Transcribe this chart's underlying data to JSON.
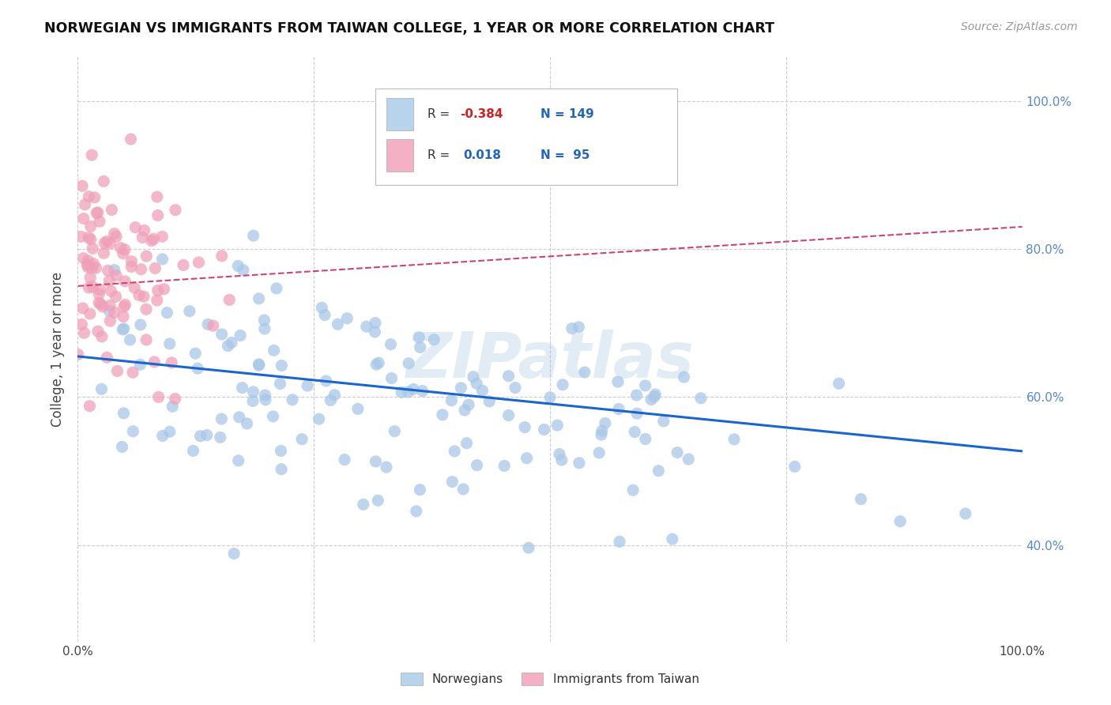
{
  "title": "NORWEGIAN VS IMMIGRANTS FROM TAIWAN COLLEGE, 1 YEAR OR MORE CORRELATION CHART",
  "source": "Source: ZipAtlas.com",
  "ylabel": "College, 1 year or more",
  "xlim": [
    0.0,
    1.0
  ],
  "ylim": [
    0.27,
    1.06
  ],
  "ytick_positions": [
    0.4,
    0.6,
    0.8,
    1.0
  ],
  "ytick_labels": [
    "40.0%",
    "60.0%",
    "80.0%",
    "100.0%"
  ],
  "xtick_positions": [
    0.0,
    0.25,
    0.5,
    0.75,
    1.0
  ],
  "xtick_labels": [
    "0.0%",
    "",
    "",
    "",
    "100.0%"
  ],
  "norwegian_R": -0.384,
  "norwegian_N": 149,
  "taiwan_R": 0.018,
  "taiwan_N": 95,
  "blue_dot_color": "#a8c8e8",
  "blue_line_color": "#1a66cc",
  "pink_dot_color": "#f0a0b8",
  "pink_line_color": "#cc4477",
  "legend_blue_fill": "#b8d4ec",
  "legend_pink_fill": "#f4b0c4",
  "watermark": "ZIPatlas",
  "background_color": "#ffffff",
  "grid_color": "#cccccc",
  "title_color": "#111111",
  "source_color": "#999999",
  "ylabel_color": "#444444",
  "tick_label_color": "#5588cc",
  "xtick_label_color": "#444444",
  "nor_line_y0": 0.655,
  "nor_line_y1": 0.527,
  "tai_line_y0": 0.75,
  "tai_line_y1": 0.83
}
